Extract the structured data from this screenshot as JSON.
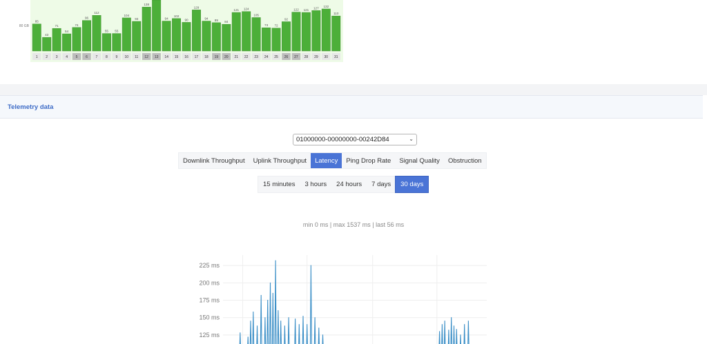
{
  "usage_chart": {
    "chart_data": {
      "type": "bar",
      "categories": [
        "1",
        "2",
        "3",
        "4",
        "5",
        "6",
        "7",
        "8",
        "9",
        "10",
        "11",
        "12",
        "13",
        "14",
        "15",
        "16",
        "17",
        "18",
        "19",
        "20",
        "21",
        "22",
        "23",
        "24",
        "25",
        "26",
        "27",
        "28",
        "29",
        "30",
        "31"
      ],
      "values": [
        85,
        43,
        71,
        54,
        74,
        96,
        112,
        55,
        55,
        104,
        93,
        138,
        160,
        94,
        102,
        90,
        129,
        94,
        89,
        84,
        121,
        124,
        105,
        73,
        72,
        92,
        122,
        121,
        127,
        132,
        110
      ],
      "value_labels": [
        "85",
        "43",
        "71",
        "54",
        "74",
        "96",
        "112",
        "55",
        "55",
        "104",
        "93",
        "138",
        "",
        "94",
        "102",
        "90",
        "129",
        "94",
        "89",
        "84",
        "121",
        "124",
        "105",
        "73",
        "72",
        "92",
        "122",
        "121",
        "127",
        "132",
        "110"
      ],
      "ytick_label": "80 GB",
      "ytick_value": 80,
      "highlighted_days": [
        "5",
        "6",
        "12",
        "13",
        "19",
        "20",
        "26",
        "27"
      ],
      "bar_color": "#4caf39",
      "background": "#eefbe7"
    }
  },
  "telemetry": {
    "title": "Telemetry data",
    "device_id": "01000000-00000000-00242D84",
    "tabs": [
      {
        "label": "Downlink Throughput",
        "active": false
      },
      {
        "label": "Uplink Throughput",
        "active": false
      },
      {
        "label": "Latency",
        "active": true
      },
      {
        "label": "Ping Drop Rate",
        "active": false
      },
      {
        "label": "Signal Quality",
        "active": false
      },
      {
        "label": "Obstruction",
        "active": false
      }
    ],
    "ranges": [
      {
        "label": "15 minutes",
        "active": false
      },
      {
        "label": "3 hours",
        "active": false
      },
      {
        "label": "24 hours",
        "active": false
      },
      {
        "label": "7 days",
        "active": false
      },
      {
        "label": "30 days",
        "active": true
      }
    ],
    "summary": "min 0 ms | max 1537 ms | last 56 ms",
    "accent_color": "#4a74d6"
  },
  "latency_chart": {
    "chart_data": {
      "type": "line",
      "ylabels": [
        "225 ms",
        "200 ms",
        "175 ms",
        "150 ms",
        "125 ms"
      ],
      "yticks": [
        225,
        200,
        175,
        150,
        125
      ],
      "ylim": [
        112,
        240
      ],
      "series": [
        {
          "color": "#3b8fc7",
          "peaks": [
            {
              "t": 0.06,
              "v": 128
            },
            {
              "t": 0.09,
              "v": 122
            },
            {
              "t": 0.1,
              "v": 145
            },
            {
              "t": 0.11,
              "v": 158
            },
            {
              "t": 0.125,
              "v": 138
            },
            {
              "t": 0.14,
              "v": 182
            },
            {
              "t": 0.155,
              "v": 150
            },
            {
              "t": 0.165,
              "v": 175
            },
            {
              "t": 0.175,
              "v": 200
            },
            {
              "t": 0.185,
              "v": 185
            },
            {
              "t": 0.195,
              "v": 232
            },
            {
              "t": 0.205,
              "v": 160
            },
            {
              "t": 0.215,
              "v": 145
            },
            {
              "t": 0.23,
              "v": 138
            },
            {
              "t": 0.245,
              "v": 150
            },
            {
              "t": 0.27,
              "v": 148
            },
            {
              "t": 0.285,
              "v": 140
            },
            {
              "t": 0.3,
              "v": 152
            },
            {
              "t": 0.315,
              "v": 140
            },
            {
              "t": 0.33,
              "v": 225
            },
            {
              "t": 0.345,
              "v": 150
            },
            {
              "t": 0.36,
              "v": 135
            },
            {
              "t": 0.375,
              "v": 125
            },
            {
              "t": 0.82,
              "v": 130
            },
            {
              "t": 0.83,
              "v": 140
            },
            {
              "t": 0.84,
              "v": 145
            },
            {
              "t": 0.855,
              "v": 132
            },
            {
              "t": 0.865,
              "v": 150
            },
            {
              "t": 0.875,
              "v": 138
            },
            {
              "t": 0.885,
              "v": 133
            },
            {
              "t": 0.9,
              "v": 125
            },
            {
              "t": 0.915,
              "v": 140
            },
            {
              "t": 0.93,
              "v": 145
            }
          ]
        }
      ]
    }
  }
}
